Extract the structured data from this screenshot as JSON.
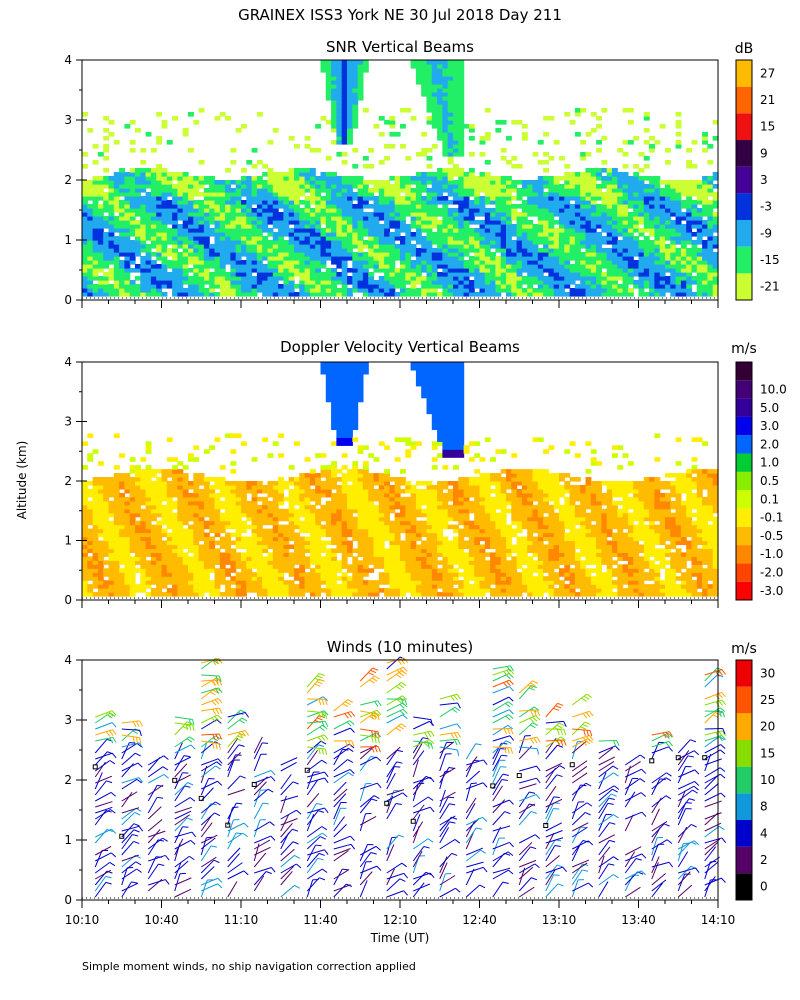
{
  "figure": {
    "title": "GRAINEX ISS3 York NE  30 Jul 2018 Day 211",
    "y_axis_label": "Altitude (km)",
    "x_axis_label": "Time (UT)",
    "footnote": "Simple moment winds, no ship navigation correction applied"
  },
  "colors": {
    "snr": [
      "#ccff33",
      "#22ee66",
      "#22aaee",
      "#0033dd",
      "#440099",
      "#330044",
      "#ee1111",
      "#ff6600",
      "#ffbb00"
    ],
    "velocity": [
      "#ff0000",
      "#ff4400",
      "#ff8800",
      "#ffbb00",
      "#ffee00",
      "#ccff00",
      "#88ee00",
      "#00cc33",
      "#0066ff",
      "#0000ee",
      "#330099",
      "#440077",
      "#330033"
    ],
    "wind": [
      "#000000",
      "#550066",
      "#0000cc",
      "#1199dd",
      "#22cc66",
      "#88dd00",
      "#ffaa00",
      "#ff5500",
      "#ee0000"
    ],
    "data_empty": "#ffffff",
    "frame": "#000000"
  },
  "chart_data": [
    {
      "type": "heatmap",
      "title": "SNR Vertical Beams",
      "ylabel": "Altitude (km)",
      "ylim": [
        0,
        4
      ],
      "yticks": [
        "0",
        "1",
        "2",
        "3",
        "4"
      ],
      "xlim": [
        "10:10",
        "14:10"
      ],
      "colorbar": {
        "unit": "dB",
        "labels": [
          "-21",
          "-15",
          "-9",
          "-3",
          "3",
          "9",
          "15",
          "21",
          "27"
        ],
        "bin_lower_bounds": [
          -21,
          -15,
          -9,
          -3,
          3,
          9,
          15,
          21,
          27
        ]
      },
      "features": [
        {
          "name": "boundary_layer_echo",
          "altitude_km": [
            0.1,
            2.1
          ],
          "time_range": [
            "10:10",
            "14:10"
          ],
          "typical_dB": [
            -15,
            -3
          ]
        },
        {
          "name": "strong_plume_1",
          "altitude_km": [
            2.6,
            4.0
          ],
          "time_range": [
            "11:40",
            "11:58"
          ],
          "typical_dB": [
            -9,
            3
          ]
        },
        {
          "name": "strong_plume_2",
          "altitude_km": [
            2.4,
            4.0
          ],
          "time_range": [
            "12:20",
            "12:40"
          ],
          "typical_dB": [
            -9,
            -3
          ]
        },
        {
          "name": "scattered_upper_echoes",
          "altitude_km": [
            2.1,
            3.2
          ],
          "time_range": [
            "10:10",
            "14:10"
          ],
          "typical_dB": [
            -21,
            -15
          ]
        }
      ]
    },
    {
      "type": "heatmap",
      "title": "Doppler Velocity Vertical Beams",
      "ylabel": "Altitude (km)",
      "ylim": [
        0,
        4
      ],
      "yticks": [
        "0",
        "1",
        "2",
        "3",
        "4"
      ],
      "xlim": [
        "10:10",
        "14:10"
      ],
      "colorbar": {
        "unit": "m/s",
        "labels": [
          "-3.0",
          "-2.0",
          "-1.0",
          "-0.5",
          "-0.1",
          "0.1",
          "0.5",
          "1.0",
          "2.0",
          "3.0",
          "5.0",
          "10.0"
        ],
        "bin_edges": [
          -3.0,
          -2.0,
          -1.0,
          -0.5,
          -0.1,
          0.1,
          0.5,
          1.0,
          2.0,
          3.0,
          5.0,
          10.0
        ]
      },
      "features": [
        {
          "name": "boundary_layer_velocity",
          "altitude_km": [
            0.1,
            2.1
          ],
          "time_range": [
            "10:10",
            "14:10"
          ],
          "typical_m_s": [
            -0.5,
            0.1
          ]
        },
        {
          "name": "upper_updraft_1",
          "altitude_km": [
            2.6,
            4.0
          ],
          "time_range": [
            "11:40",
            "11:58"
          ],
          "typical_m_s": [
            1.0,
            2.0
          ]
        },
        {
          "name": "upper_updraft_2",
          "altitude_km": [
            2.4,
            4.0
          ],
          "time_range": [
            "12:20",
            "12:40"
          ],
          "typical_m_s": [
            1.0,
            3.0
          ]
        }
      ]
    },
    {
      "type": "scatter",
      "subtype": "wind_barbs",
      "title": "Winds (10 minutes)",
      "ylabel": "Altitude (km)",
      "ylim": [
        0,
        4
      ],
      "yticks": [
        "0",
        "1",
        "2",
        "3",
        "4"
      ],
      "x": [
        "10:10",
        "10:40",
        "11:10",
        "11:40",
        "12:10",
        "12:40",
        "13:10",
        "13:40",
        "14:10"
      ],
      "xlabel": "Time (UT)",
      "interval_minutes": 10,
      "profile_count": 24,
      "colorbar": {
        "unit": "m/s",
        "labels": [
          "0",
          "2",
          "4",
          "8",
          "10",
          "15",
          "20",
          "25",
          "30"
        ],
        "bin_lower_bounds": [
          0,
          2,
          4,
          8,
          10,
          15,
          20,
          25,
          30
        ]
      },
      "summary": {
        "lower_layer_altitude_km": [
          0.0,
          2.5
        ],
        "dominant_speed_m_s": [
          2,
          8
        ],
        "dominant_direction": "southwesterly",
        "upper_speed_m_s": [
          8,
          30
        ]
      }
    }
  ]
}
